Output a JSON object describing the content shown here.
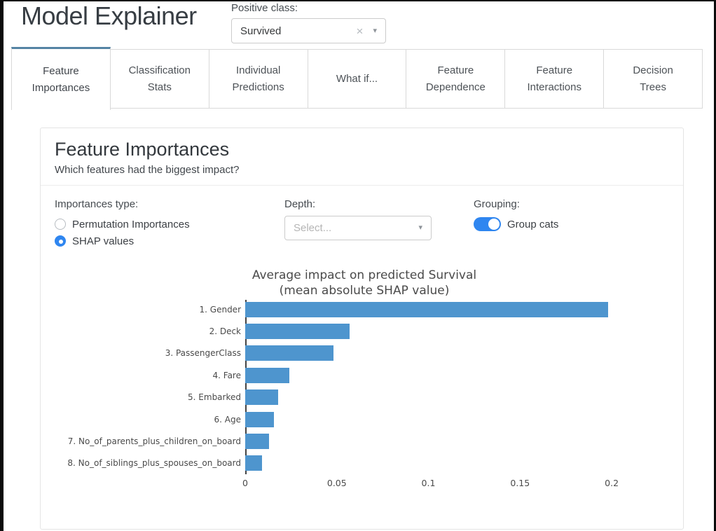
{
  "colors": {
    "accent_blue": "#2f86f0",
    "tab_active_border": "#5584a4",
    "bar_blue": "#4e95ce"
  },
  "header": {
    "title": "Model Explainer",
    "positive_class_label": "Positive class:",
    "positive_class_value": "Survived",
    "clear_icon": "×",
    "caret_icon": "▾"
  },
  "tabs": [
    {
      "label": "Feature Importances",
      "lines": [
        "Feature",
        "Importances"
      ],
      "active": true
    },
    {
      "label": "Classification Stats",
      "lines": [
        "Classification",
        "Stats"
      ],
      "active": false
    },
    {
      "label": "Individual Predictions",
      "lines": [
        "Individual",
        "Predictions"
      ],
      "active": false
    },
    {
      "label": "What if...",
      "lines": [
        "What if..."
      ],
      "active": false
    },
    {
      "label": "Feature Dependence",
      "lines": [
        "Feature",
        "Dependence"
      ],
      "active": false
    },
    {
      "label": "Feature Interactions",
      "lines": [
        "Feature",
        "Interactions"
      ],
      "active": false
    },
    {
      "label": "Decision Trees",
      "lines": [
        "Decision",
        "Trees"
      ],
      "active": false
    }
  ],
  "card": {
    "title": "Feature Importances",
    "subtitle": "Which features had the biggest impact?",
    "controls": {
      "importances_type_label": "Importances type:",
      "radio_options": [
        {
          "label": "Permutation Importances",
          "selected": false
        },
        {
          "label": "SHAP values",
          "selected": true
        }
      ],
      "depth_label": "Depth:",
      "depth_placeholder": "Select...",
      "depth_caret_icon": "▾",
      "grouping_label": "Grouping:",
      "group_cats_label": "Group cats",
      "group_cats_on": true
    }
  },
  "chart_data": {
    "type": "bar",
    "orientation": "horizontal",
    "title": "Average impact on predicted Survival",
    "subtitle": "(mean absolute SHAP value)",
    "categories": [
      "1. Gender",
      "2. Deck",
      "3. PassengerClass",
      "4. Fare",
      "5. Embarked",
      "6. Age",
      "7. No_of_parents_plus_children_on_board",
      "8. No_of_siblings_plus_spouses_on_board"
    ],
    "values": [
      0.198,
      0.057,
      0.048,
      0.024,
      0.018,
      0.0155,
      0.013,
      0.009
    ],
    "xlabel": "",
    "ylabel": "",
    "xlim": [
      0,
      0.234
    ],
    "xticks": [
      0,
      0.05,
      0.1,
      0.15,
      0.2
    ],
    "xtick_labels": [
      "0",
      "0.05",
      "0.1",
      "0.15",
      "0.2"
    ],
    "grid": false,
    "legend": false,
    "bar_color": "#4e95ce"
  }
}
